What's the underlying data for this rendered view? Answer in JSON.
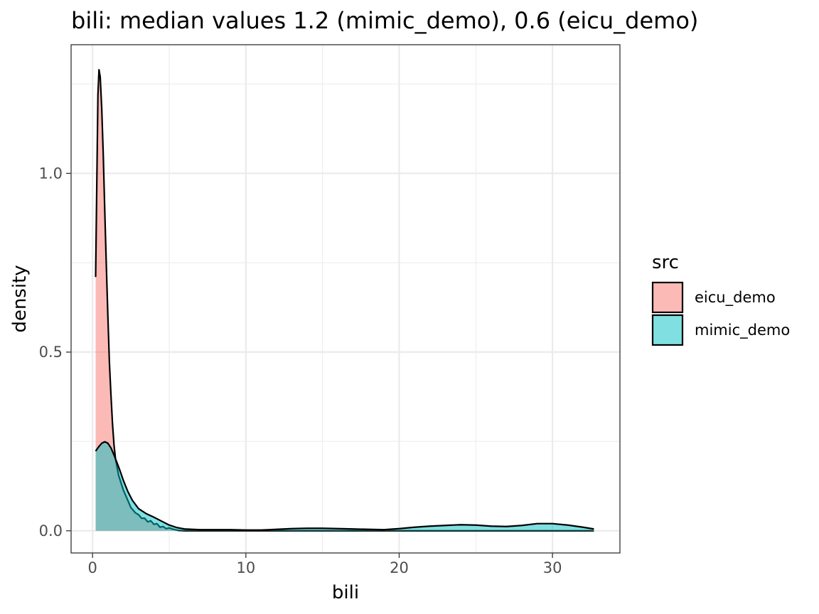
{
  "chart_data": {
    "type": "area",
    "subtype": "density",
    "title": "bili: median values 1.2 (mimic_demo), 0.6 (eicu_demo)",
    "xlabel": "bili",
    "ylabel": "density",
    "xlim": [
      -1.4,
      34.4
    ],
    "ylim": [
      -0.062,
      1.36
    ],
    "x_ticks": [
      0,
      10,
      20,
      30
    ],
    "x_tick_labels": [
      "0",
      "10",
      "20",
      "30"
    ],
    "x_minor_ticks": [
      5,
      15,
      25
    ],
    "y_ticks": [
      0.0,
      0.5,
      1.0
    ],
    "y_tick_labels": [
      "0.0",
      "0.5",
      "1.0"
    ],
    "y_minor_ticks": [
      0.25,
      0.75,
      1.25
    ],
    "grid": true,
    "legend": {
      "title": "src",
      "placement": "right"
    },
    "series": [
      {
        "name": "eicu_demo",
        "color": "#F8766D",
        "fill_opacity": 0.5,
        "points": [
          [
            0.2,
            0.71
          ],
          [
            0.3,
            1.05
          ],
          [
            0.35,
            1.22
          ],
          [
            0.42,
            1.29
          ],
          [
            0.5,
            1.27
          ],
          [
            0.6,
            1.18
          ],
          [
            0.7,
            1.05
          ],
          [
            0.8,
            0.89
          ],
          [
            0.9,
            0.74
          ],
          [
            1.0,
            0.6
          ],
          [
            1.1,
            0.47
          ],
          [
            1.2,
            0.38
          ],
          [
            1.3,
            0.3
          ],
          [
            1.4,
            0.24
          ],
          [
            1.5,
            0.2
          ],
          [
            1.7,
            0.155
          ],
          [
            2.0,
            0.115
          ],
          [
            2.3,
            0.085
          ],
          [
            2.5,
            0.065
          ],
          [
            2.8,
            0.05
          ],
          [
            3.0,
            0.045
          ],
          [
            3.2,
            0.035
          ],
          [
            3.4,
            0.035
          ],
          [
            3.6,
            0.025
          ],
          [
            3.8,
            0.028
          ],
          [
            4.0,
            0.018
          ],
          [
            4.2,
            0.02
          ],
          [
            4.4,
            0.01
          ],
          [
            4.6,
            0.012
          ],
          [
            4.8,
            0.006
          ],
          [
            5.0,
            0.008
          ],
          [
            5.3,
            0.004
          ],
          [
            5.6,
            0.001
          ],
          [
            6.0,
            0.0
          ],
          [
            10.0,
            0.0
          ],
          [
            20.0,
            0.0
          ],
          [
            32.7,
            0.0
          ]
        ]
      },
      {
        "name": "mimic_demo",
        "color": "#00BFC4",
        "fill_opacity": 0.5,
        "points": [
          [
            0.2,
            0.223
          ],
          [
            0.4,
            0.235
          ],
          [
            0.6,
            0.245
          ],
          [
            0.8,
            0.249
          ],
          [
            1.0,
            0.245
          ],
          [
            1.2,
            0.232
          ],
          [
            1.4,
            0.212
          ],
          [
            1.6,
            0.19
          ],
          [
            1.8,
            0.167
          ],
          [
            2.0,
            0.142
          ],
          [
            2.3,
            0.11
          ],
          [
            2.6,
            0.085
          ],
          [
            3.0,
            0.062
          ],
          [
            3.5,
            0.048
          ],
          [
            4.0,
            0.038
          ],
          [
            4.5,
            0.027
          ],
          [
            5.0,
            0.016
          ],
          [
            5.5,
            0.009
          ],
          [
            6.0,
            0.005
          ],
          [
            7.0,
            0.003
          ],
          [
            8.0,
            0.003
          ],
          [
            9.0,
            0.003
          ],
          [
            10.0,
            0.002
          ],
          [
            11.0,
            0.002
          ],
          [
            12.0,
            0.004
          ],
          [
            13.0,
            0.006
          ],
          [
            14.0,
            0.007
          ],
          [
            15.0,
            0.007
          ],
          [
            16.0,
            0.006
          ],
          [
            17.0,
            0.005
          ],
          [
            18.0,
            0.004
          ],
          [
            19.0,
            0.003
          ],
          [
            20.0,
            0.006
          ],
          [
            21.0,
            0.01
          ],
          [
            22.0,
            0.013
          ],
          [
            23.0,
            0.015
          ],
          [
            24.0,
            0.017
          ],
          [
            25.0,
            0.016
          ],
          [
            26.0,
            0.013
          ],
          [
            27.0,
            0.012
          ],
          [
            28.0,
            0.015
          ],
          [
            29.0,
            0.02
          ],
          [
            30.0,
            0.02
          ],
          [
            31.0,
            0.016
          ],
          [
            32.0,
            0.01
          ],
          [
            32.7,
            0.005
          ]
        ]
      }
    ]
  }
}
